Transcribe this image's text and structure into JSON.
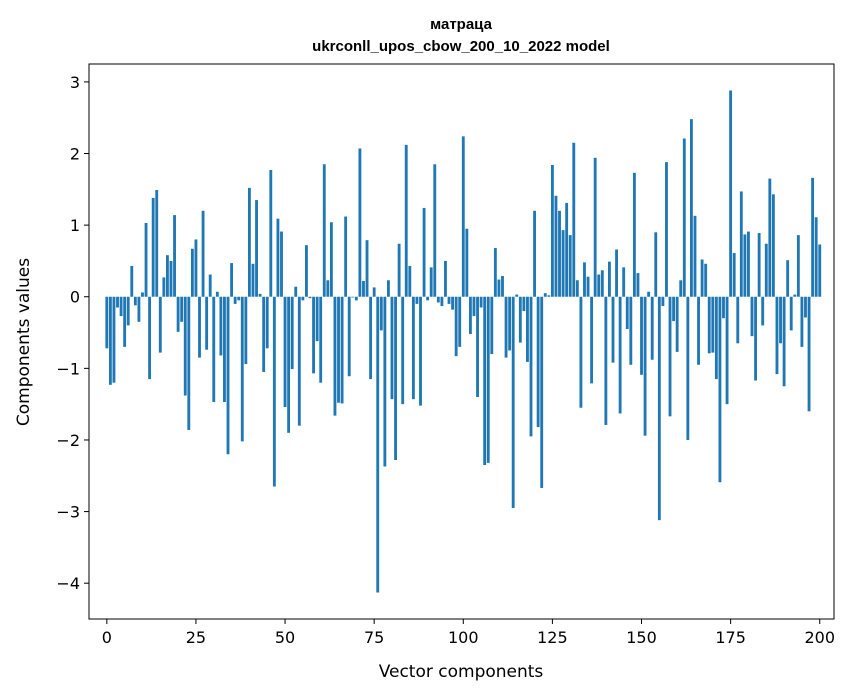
{
  "chart_data": {
    "type": "bar",
    "title": "матраца",
    "subtitle": "ukrconll_upos_cbow_200_10_2022 model",
    "xlabel": "Vector components",
    "ylabel": "Components values",
    "xlim": [
      -5,
      204
    ],
    "ylim": [
      -4.5,
      3.25
    ],
    "xticks": [
      0,
      25,
      50,
      75,
      100,
      125,
      150,
      175,
      200
    ],
    "xtick_labels": [
      "0",
      "25",
      "50",
      "75",
      "100",
      "125",
      "150",
      "175",
      "200"
    ],
    "yticks": [
      -4,
      -3,
      -2,
      -1,
      0,
      1,
      2,
      3
    ],
    "ytick_labels": [
      "−4",
      "−3",
      "−2",
      "−1",
      "0",
      "1",
      "2",
      "3"
    ],
    "grid": false,
    "bar_color": "#1f77b4",
    "values": [
      -0.72,
      -1.23,
      -1.2,
      -0.15,
      -0.27,
      -0.7,
      -0.4,
      0.43,
      -0.12,
      -0.35,
      0.06,
      1.03,
      -1.15,
      1.38,
      1.49,
      -0.78,
      0.27,
      0.58,
      0.5,
      1.14,
      -0.49,
      -0.35,
      -1.38,
      -1.86,
      0.67,
      0.8,
      -0.85,
      1.2,
      -0.74,
      0.31,
      -1.47,
      0.07,
      -0.82,
      -1.47,
      -2.2,
      0.47,
      -0.1,
      -0.05,
      -2.02,
      -0.94,
      1.52,
      0.46,
      1.35,
      0.04,
      -1.05,
      -0.72,
      1.77,
      -2.65,
      1.09,
      0.91,
      -1.54,
      -1.9,
      -1.01,
      0.14,
      -1.8,
      -0.05,
      0.72,
      -0.02,
      -1.07,
      -0.62,
      -1.2,
      1.85,
      0.23,
      1.04,
      -1.66,
      -1.48,
      -1.49,
      1.12,
      -1.11,
      -0.01,
      -0.05,
      2.07,
      0.22,
      0.79,
      -1.15,
      0.13,
      -4.13,
      -0.47,
      -2.37,
      0.23,
      -1.43,
      -2.28,
      0.74,
      -1.5,
      2.12,
      0.43,
      -1.43,
      -0.1,
      -1.52,
      1.24,
      -0.05,
      0.41,
      1.85,
      -0.08,
      -0.13,
      0.5,
      -0.1,
      -0.18,
      -0.83,
      -0.7,
      2.24,
      0.95,
      -0.52,
      -0.27,
      -1.4,
      -0.15,
      -2.35,
      -2.32,
      -0.8,
      0.68,
      0.24,
      0.29,
      -0.85,
      -0.75,
      -2.95,
      0.03,
      -0.64,
      -0.2,
      -0.91,
      -1.95,
      1.2,
      -1.82,
      -2.67,
      0.05,
      0.02,
      1.84,
      1.41,
      1.2,
      0.93,
      1.31,
      0.86,
      2.15,
      0.23,
      -1.55,
      0.48,
      0.28,
      -1.21,
      1.94,
      0.31,
      0.37,
      -1.79,
      0.49,
      -0.92,
      0.66,
      -1.63,
      0.41,
      -0.45,
      -0.95,
      1.73,
      0.33,
      -1.09,
      -1.94,
      0.07,
      -0.88,
      0.9,
      -3.12,
      -0.13,
      1.88,
      -1.67,
      -0.34,
      -0.77,
      0.23,
      2.21,
      -2.0,
      2.48,
      1.13,
      -0.95,
      0.52,
      0.46,
      -0.79,
      -0.78,
      -1.15,
      -2.59,
      -0.3,
      -1.5,
      2.88,
      0.61,
      -0.65,
      1.47,
      0.87,
      0.91,
      -0.55,
      -1.17,
      0.89,
      -0.4,
      0.74,
      1.65,
      1.43,
      -1.08,
      -0.65,
      -1.25,
      0.51,
      -0.47,
      0.03,
      0.86,
      -0.7,
      -0.29,
      -1.6,
      1.66,
      1.11,
      0.73
    ]
  }
}
